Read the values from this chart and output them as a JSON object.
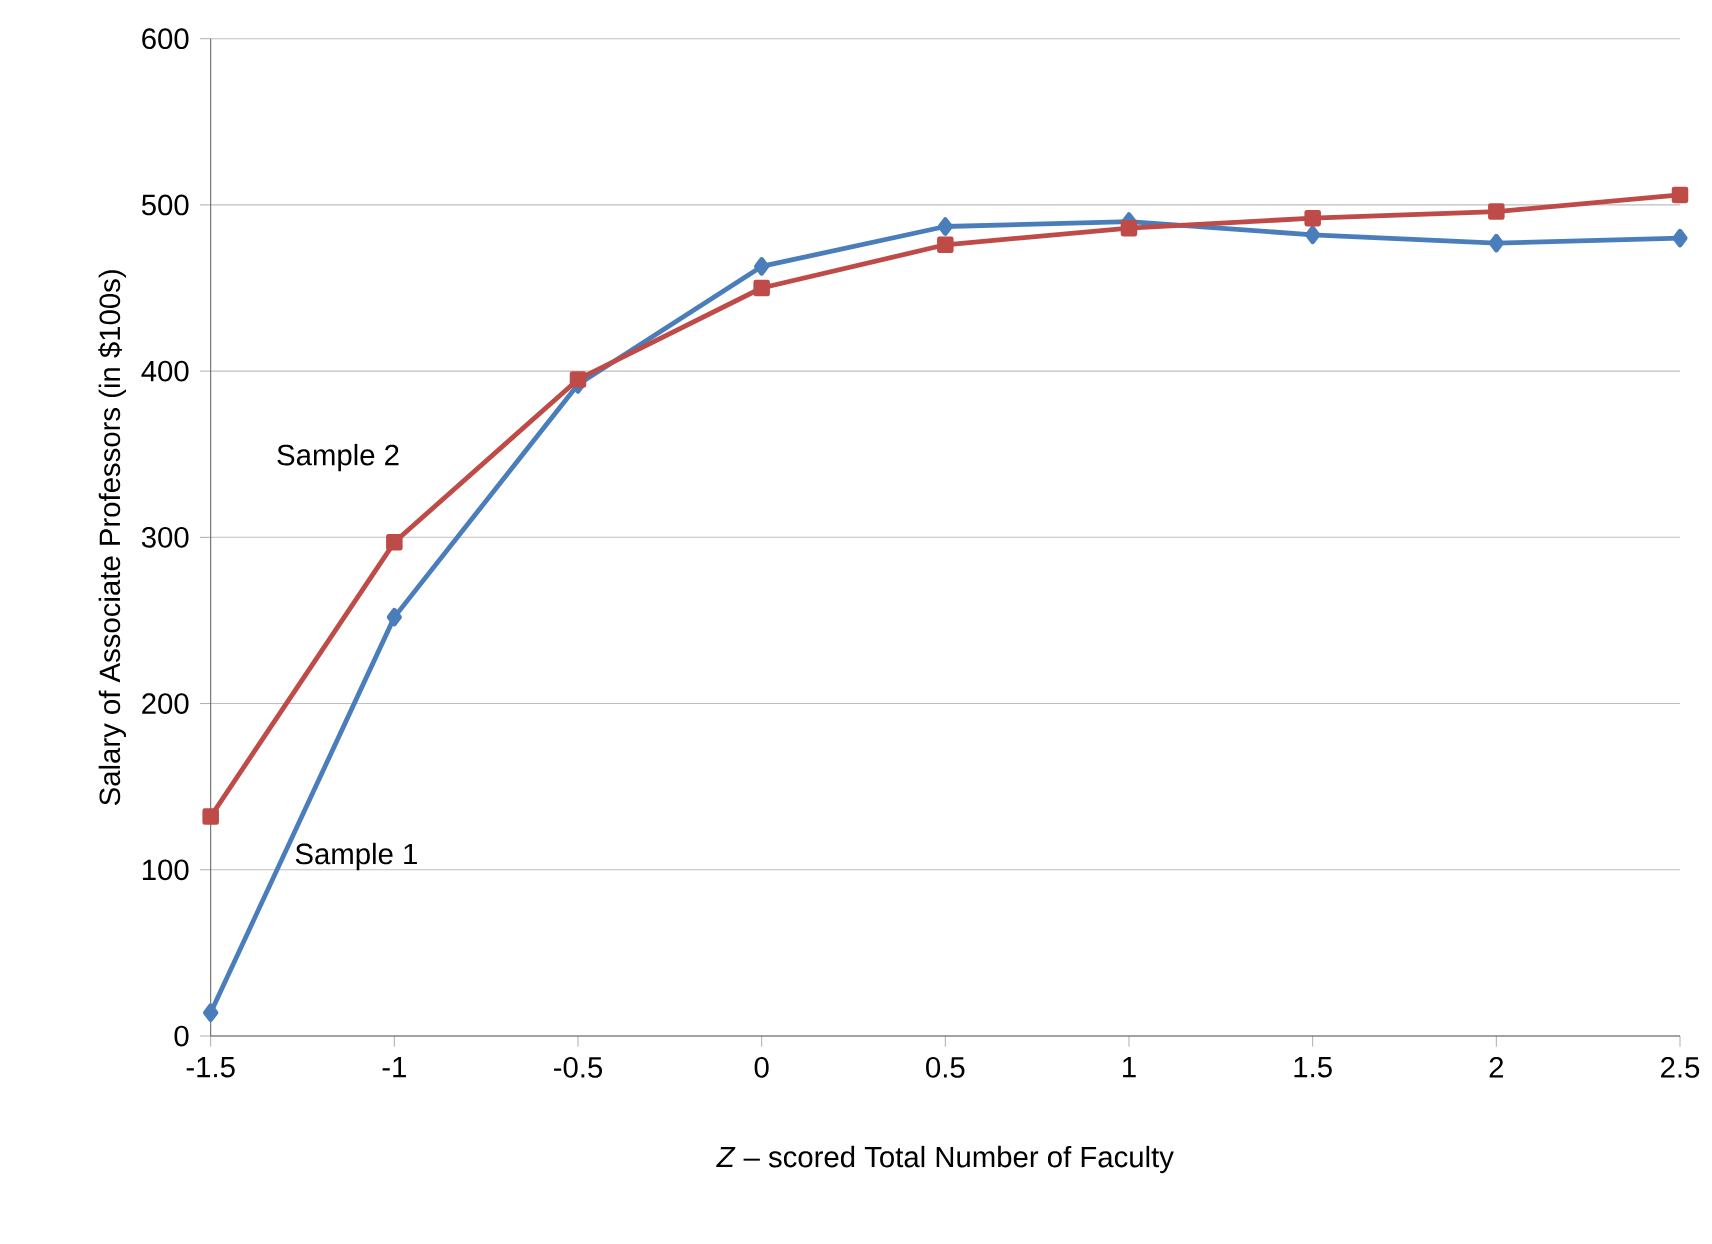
{
  "chart_data": {
    "type": "line",
    "xlabel": "*Z* – scored Total Number of Faculty",
    "ylabel": "Salary of Associate Professors (in $100s)",
    "x": [
      -1.5,
      -1,
      -0.5,
      0,
      0.5,
      1,
      1.5,
      2,
      2.5
    ],
    "series": [
      {
        "name": "Sample 1",
        "color": "#4a7ebb",
        "marker": "diamond",
        "values": [
          14,
          252,
          392,
          463,
          487,
          490,
          482,
          477,
          480
        ]
      },
      {
        "name": "Sample 2",
        "color": "#be4b48",
        "marker": "square",
        "values": [
          132,
          297,
          395,
          450,
          476,
          486,
          492,
          496,
          506
        ]
      }
    ],
    "xlim": [
      -1.5,
      2.5
    ],
    "xticks": [
      -1.5,
      -1,
      -0.5,
      0,
      0.5,
      1,
      1.5,
      2,
      2.5
    ],
    "ylim": [
      0,
      600
    ],
    "yticks": [
      0,
      100,
      200,
      300,
      400,
      500,
      600
    ],
    "grid": "y",
    "line_style": "solid"
  }
}
